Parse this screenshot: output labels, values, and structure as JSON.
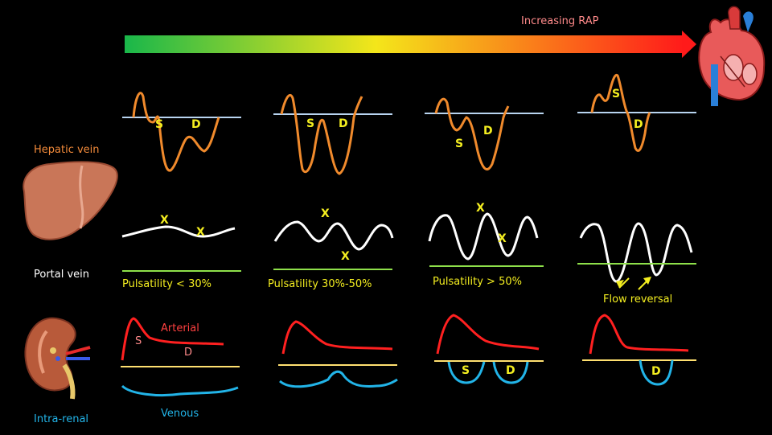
{
  "header": {
    "title": "Increasing RAP"
  },
  "rows": {
    "hepatic": {
      "label": "Hepatic vein"
    },
    "portal": {
      "label": "Portal vein"
    },
    "renal": {
      "label": "Intra-renal",
      "arterial_label": "Arterial",
      "venous_label": "Venous"
    }
  },
  "hepatic_stages": [
    {
      "s": "S",
      "d": "D"
    },
    {
      "s": "S",
      "d": "D"
    },
    {
      "s": "S",
      "d": "D"
    },
    {
      "s": "S",
      "d": "D"
    }
  ],
  "portal_stages": [
    {
      "caption": "Pulsatility < 30%",
      "marks": [
        "X",
        "X"
      ]
    },
    {
      "caption": "Pulsatility 30%-50%",
      "marks": [
        "X",
        "X"
      ]
    },
    {
      "caption": "Pulsatility > 50%",
      "marks": [
        "X",
        "X"
      ]
    },
    {
      "caption": "Flow reversal",
      "marks": []
    }
  ],
  "renal_stages": [
    {
      "marks": [
        "S",
        "D"
      ]
    },
    {
      "marks": []
    },
    {
      "marks": [
        "S",
        "D"
      ]
    },
    {
      "marks": [
        "D"
      ]
    }
  ],
  "colors": {
    "background": "#000000",
    "hepatic_wave": "#f08a2c",
    "hepatic_label": "#f28a3a",
    "baseline_hepatic": "#b8d4f0",
    "portal_wave": "#ffffff",
    "portal_baseline": "#8ee04a",
    "caption": "#f4ee20",
    "arterial": "#ff2020",
    "arterial_label": "#ff4040",
    "venous": "#22b4e8",
    "renal_baseline": "#ffe070",
    "arrow_start": "#19b74a",
    "arrow_mid": "#f4e61a",
    "arrow_end": "#ff1a1a",
    "title": "#ff8a8a"
  },
  "icons": [
    "heart-icon",
    "liver-icon",
    "kidney-icon"
  ]
}
